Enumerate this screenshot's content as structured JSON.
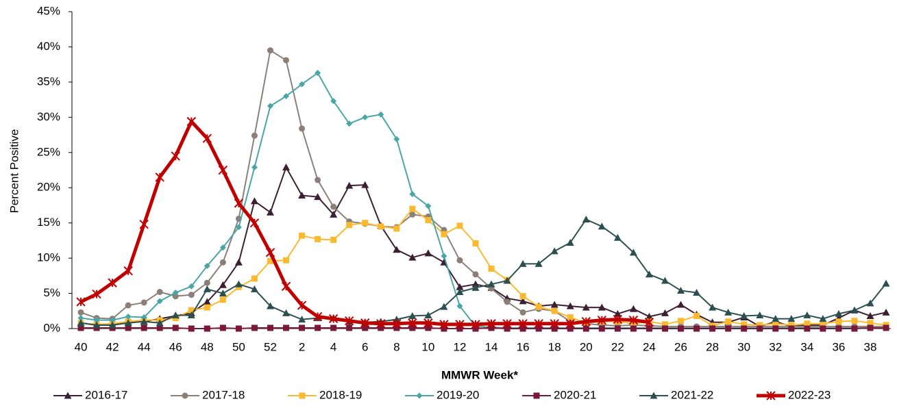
{
  "chart_data": {
    "type": "line",
    "x_label": "MMWR Week*",
    "y_label": "Percent Positive",
    "categories": [
      "40",
      null,
      "42",
      null,
      "44",
      null,
      "46",
      null,
      "48",
      null,
      "50",
      null,
      "52",
      null,
      "2",
      null,
      "4",
      null,
      "6",
      null,
      "8",
      null,
      "10",
      null,
      "12",
      null,
      "14",
      null,
      "16",
      null,
      "18",
      null,
      "20",
      null,
      "22",
      null,
      "24",
      null,
      "26",
      null,
      "28",
      null,
      "30",
      null,
      "32",
      null,
      "34",
      null,
      "36",
      null,
      "38",
      null
    ],
    "ylim": [
      0,
      45
    ],
    "yticks": [
      {
        "value": 0,
        "label": "0%"
      },
      {
        "value": 5,
        "label": "5%"
      },
      {
        "value": 10,
        "label": "10%"
      },
      {
        "value": 15,
        "label": "15%"
      },
      {
        "value": 20,
        "label": "20%"
      },
      {
        "value": 25,
        "label": "25%"
      },
      {
        "value": 30,
        "label": "30%"
      },
      {
        "value": 35,
        "label": "35%"
      },
      {
        "value": 40,
        "label": "40%"
      },
      {
        "value": 45,
        "label": "45%"
      }
    ],
    "legend": "bottom",
    "series": [
      {
        "name": "2016-17",
        "color": "#3b1f33",
        "marker": "triangle",
        "width": 2,
        "values": [
          0.8,
          0.5,
          0.5,
          1.0,
          1.0,
          1.4,
          1.8,
          2.2,
          3.8,
          6.2,
          9.4,
          18.1,
          16.5,
          22.9,
          18.9,
          18.7,
          16.2,
          20.3,
          20.4,
          14.6,
          11.2,
          10.1,
          10.7,
          9.4,
          5.9,
          6.3,
          5.8,
          4.3,
          3.9,
          3.2,
          3.4,
          3.2,
          3.0,
          3.0,
          2.1,
          2.8,
          1.7,
          2.2,
          3.4,
          2.0,
          0.9,
          0.9,
          1.6,
          0.3,
          1.0,
          0.3,
          0.5,
          0.5,
          1.5,
          2.6,
          1.8,
          2.3
        ]
      },
      {
        "name": "2017-18",
        "color": "#8c7f78",
        "marker": "circle",
        "width": 2,
        "values": [
          2.3,
          1.5,
          1.4,
          3.3,
          3.7,
          5.2,
          4.6,
          4.8,
          6.5,
          9.4,
          15.6,
          27.4,
          39.5,
          38.1,
          28.4,
          21.1,
          17.3,
          15.2,
          14.9,
          14.5,
          14.4,
          16.2,
          15.9,
          14.0,
          9.7,
          7.7,
          5.7,
          3.8,
          2.3,
          2.8,
          2.5,
          1.0,
          0.7,
          0.5,
          0.4,
          0.5,
          0.4,
          0.3,
          0.3,
          0.3,
          0.3,
          0.3,
          0.3,
          0.3,
          0.3,
          0.3,
          0.3,
          0.3,
          0.3,
          0.3,
          0.3,
          0.3
        ]
      },
      {
        "name": "2018-19",
        "color": "#fbb92f",
        "marker": "square",
        "width": 2,
        "values": [
          0.8,
          0.6,
          0.7,
          1.0,
          1.2,
          1.2,
          1.5,
          2.6,
          3.0,
          4.1,
          5.9,
          7.1,
          9.6,
          9.7,
          13.2,
          12.7,
          12.6,
          14.7,
          15.0,
          14.5,
          14.2,
          17.0,
          15.4,
          13.4,
          14.6,
          12.1,
          8.5,
          6.9,
          4.6,
          3.1,
          2.5,
          1.6,
          0.8,
          1.0,
          1.0,
          0.7,
          1.0,
          0.6,
          1.1,
          1.8,
          0.4,
          1.0,
          0.6,
          0.5,
          0.7,
          0.5,
          0.7,
          0.7,
          1.0,
          1.1,
          0.8,
          0.5
        ]
      },
      {
        "name": "2019-20",
        "color": "#4aa6a6",
        "marker": "diamond",
        "width": 2,
        "values": [
          1.5,
          1.2,
          1.2,
          1.7,
          1.6,
          3.9,
          5.1,
          6.0,
          8.9,
          11.5,
          14.4,
          22.9,
          31.6,
          33.0,
          34.7,
          36.3,
          32.3,
          29.1,
          30.0,
          30.4,
          26.9,
          19.1,
          17.4,
          10.3,
          3.2,
          0.3,
          0.2,
          0.1,
          0.1,
          0.1,
          0.1,
          0.1,
          0.1,
          0.1,
          0.1,
          0.1,
          0.1,
          0.1,
          0.1,
          0.1,
          0.1,
          0.1,
          0.1,
          0.1,
          0.1,
          0.1,
          0.1,
          0.1,
          0.1,
          0.1,
          0.1,
          0.1
        ]
      },
      {
        "name": "2020-21",
        "color": "#7a1838",
        "marker": "square",
        "width": 2,
        "values": [
          0.1,
          0.1,
          0.1,
          0.1,
          0.1,
          0.1,
          0.1,
          0.0,
          0.0,
          0.1,
          0.0,
          0.1,
          0.1,
          0.1,
          0.1,
          0.1,
          0.1,
          0.1,
          0.1,
          0.1,
          0.1,
          0.1,
          0.1,
          0.0,
          0.0,
          0.0,
          0.1,
          0.0,
          0.0,
          0.0,
          0.0,
          0.0,
          0.0,
          0.0,
          0.0,
          0.0,
          0.0,
          0.0,
          0.0,
          0.0,
          0.0,
          0.0,
          0.0,
          0.0,
          0.0,
          0.0,
          0.0,
          0.0,
          0.0,
          0.0,
          0.1,
          0.1
        ]
      },
      {
        "name": "2021-22",
        "color": "#2c4f4f",
        "marker": "triangle",
        "width": 2,
        "values": [
          0.8,
          0.5,
          0.5,
          0.8,
          1.0,
          0.8,
          1.9,
          1.9,
          5.6,
          5.0,
          6.3,
          5.6,
          3.2,
          2.2,
          1.3,
          1.5,
          1.5,
          1.0,
          0.9,
          1.0,
          1.3,
          1.8,
          1.9,
          3.1,
          5.2,
          5.8,
          6.3,
          6.8,
          9.2,
          9.2,
          11.0,
          12.2,
          15.5,
          14.5,
          12.9,
          10.8,
          7.7,
          6.8,
          5.4,
          5.1,
          3.0,
          2.3,
          1.8,
          1.9,
          1.4,
          1.4,
          1.9,
          1.4,
          2.1,
          2.6,
          3.6,
          6.4
        ]
      },
      {
        "name": "2022-23",
        "color": "#c00000",
        "marker": "star",
        "width": 5,
        "values": [
          3.8,
          4.9,
          6.5,
          8.2,
          14.8,
          21.5,
          24.5,
          29.4,
          27.0,
          22.5,
          17.8,
          15.0,
          10.8,
          6.0,
          3.3,
          1.7,
          1.4,
          1.1,
          0.8,
          0.7,
          0.7,
          0.8,
          0.8,
          0.6,
          0.6,
          0.6,
          0.7,
          0.7,
          0.7,
          0.7,
          0.7,
          0.7,
          1.0,
          1.2,
          1.3,
          1.2,
          0.9,
          null,
          null,
          null,
          null,
          null,
          null,
          null,
          null,
          null,
          null,
          null,
          null,
          null,
          null,
          null
        ]
      }
    ]
  }
}
